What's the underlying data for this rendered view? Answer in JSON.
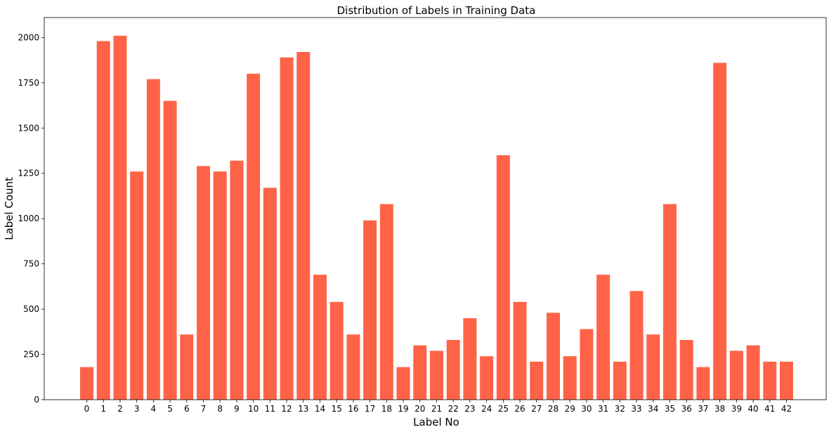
{
  "chart_data": {
    "type": "bar",
    "title": "Distribution of Labels in Training Data",
    "xlabel": "Label No",
    "ylabel": "Label Count",
    "categories": [
      "0",
      "1",
      "2",
      "3",
      "4",
      "5",
      "6",
      "7",
      "8",
      "9",
      "10",
      "11",
      "12",
      "13",
      "14",
      "15",
      "16",
      "17",
      "18",
      "19",
      "20",
      "21",
      "22",
      "23",
      "24",
      "25",
      "26",
      "27",
      "28",
      "29",
      "30",
      "31",
      "32",
      "33",
      "34",
      "35",
      "36",
      "37",
      "38",
      "39",
      "40",
      "41",
      "42"
    ],
    "values": [
      180,
      1980,
      2010,
      1260,
      1770,
      1650,
      360,
      1290,
      1260,
      1320,
      1800,
      1170,
      1890,
      1920,
      690,
      540,
      360,
      990,
      1080,
      180,
      300,
      270,
      330,
      450,
      240,
      1350,
      540,
      210,
      480,
      240,
      390,
      690,
      210,
      600,
      360,
      1080,
      330,
      180,
      1860,
      270,
      300,
      210,
      210
    ],
    "yticks": [
      0,
      250,
      500,
      750,
      1000,
      1250,
      1500,
      1750,
      2000
    ],
    "ylim": [
      0,
      2110
    ],
    "bar_color": "#ff6347",
    "grid": false
  }
}
